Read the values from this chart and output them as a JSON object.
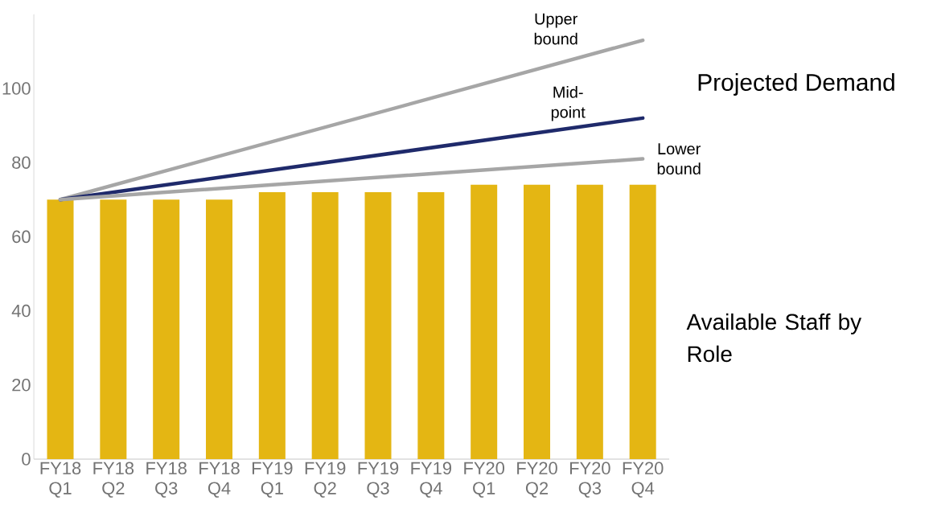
{
  "chart_data": {
    "type": "bar",
    "categories": [
      "FY18 Q1",
      "FY18 Q2",
      "FY18 Q3",
      "FY18 Q4",
      "FY19 Q1",
      "FY19 Q2",
      "FY19 Q3",
      "FY19 Q4",
      "FY20 Q1",
      "FY20 Q2",
      "FY20 Q3",
      "FY20 Q4"
    ],
    "ylim": [
      0,
      120
    ],
    "yticks": [
      0,
      20,
      40,
      60,
      80,
      100
    ],
    "series": [
      {
        "name": "Available Staff by Role",
        "color": "#e4b613",
        "values": [
          70,
          70,
          70,
          70,
          72,
          72,
          72,
          72,
          74,
          74,
          74,
          74
        ]
      },
      {
        "name": "Upper bound",
        "type": "line",
        "color": "#a6a6a6",
        "values": [
          70,
          null,
          null,
          null,
          null,
          null,
          null,
          null,
          null,
          null,
          null,
          113
        ]
      },
      {
        "name": "Mid-point",
        "type": "line",
        "color": "#1f2a6b",
        "values": [
          70,
          null,
          null,
          null,
          null,
          null,
          null,
          null,
          null,
          null,
          null,
          92
        ]
      },
      {
        "name": "Lower bound",
        "type": "line",
        "color": "#a6a6a6",
        "values": [
          70,
          null,
          null,
          null,
          null,
          null,
          null,
          null,
          null,
          null,
          null,
          81
        ]
      }
    ],
    "annotations": [
      "Projected Demand"
    ]
  }
}
